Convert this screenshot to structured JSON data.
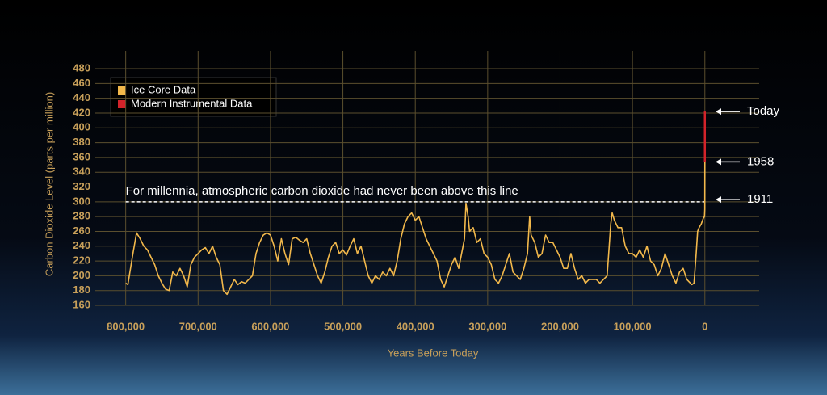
{
  "chart_data": {
    "type": "line",
    "x_label": "Years Before Today",
    "y_label": "Carbon Dioxide Level (parts per million)",
    "xlim": [
      842000,
      -75000
    ],
    "xticks": [
      {
        "value": 800000,
        "label": "800,000"
      },
      {
        "value": 700000,
        "label": "700,000"
      },
      {
        "value": 600000,
        "label": "600,000"
      },
      {
        "value": 500000,
        "label": "500,000"
      },
      {
        "value": 400000,
        "label": "400,000"
      },
      {
        "value": 300000,
        "label": "300,000"
      },
      {
        "value": 200000,
        "label": "200,000"
      },
      {
        "value": 100000,
        "label": "100,000"
      },
      0
    ],
    "ylim": [
      160,
      480
    ],
    "yticks": [
      160,
      180,
      200,
      220,
      240,
      260,
      280,
      300,
      320,
      340,
      360,
      380,
      400,
      420,
      440,
      460,
      480
    ],
    "grid": true,
    "legend": "upper left",
    "threshold": {
      "text": "For millennia, atmospheric carbon dioxide had never been above this line",
      "value": 300
    },
    "annotations": [
      {
        "label": "Today",
        "value": 422
      },
      {
        "label": "1958",
        "value": 354
      },
      {
        "label": "1911",
        "value": 303
      }
    ],
    "series": [
      {
        "name": "Ice Core Data",
        "color": "#f2b84b",
        "x": [
          800000,
          797000,
          795000,
          790000,
          785000,
          780000,
          775000,
          770000,
          765000,
          760000,
          755000,
          750000,
          745000,
          740000,
          735000,
          730000,
          725000,
          720000,
          715000,
          710000,
          705000,
          700000,
          695000,
          690000,
          685000,
          680000,
          675000,
          670000,
          665000,
          660000,
          655000,
          650000,
          645000,
          640000,
          635000,
          630000,
          625000,
          620000,
          615000,
          610000,
          605000,
          600000,
          595000,
          590000,
          585000,
          580000,
          575000,
          570000,
          565000,
          560000,
          555000,
          550000,
          545000,
          540000,
          535000,
          530000,
          525000,
          520000,
          515000,
          510000,
          505000,
          500000,
          495000,
          490000,
          485000,
          480000,
          475000,
          470000,
          465000,
          460000,
          455000,
          450000,
          445000,
          440000,
          435000,
          430000,
          425000,
          420000,
          415000,
          410000,
          405000,
          400000,
          395000,
          390000,
          385000,
          380000,
          375000,
          370000,
          365000,
          360000,
          355000,
          350000,
          345000,
          340000,
          335000,
          332000,
          330000,
          327000,
          325000,
          320000,
          315000,
          310000,
          305000,
          300000,
          295000,
          290000,
          285000,
          280000,
          275000,
          270000,
          265000,
          260000,
          255000,
          250000,
          245000,
          242000,
          240000,
          235000,
          230000,
          225000,
          220000,
          215000,
          210000,
          205000,
          200000,
          195000,
          190000,
          185000,
          180000,
          175000,
          170000,
          165000,
          160000,
          155000,
          150000,
          145000,
          140000,
          135000,
          130000,
          128000,
          125000,
          120000,
          115000,
          110000,
          105000,
          100000,
          95000,
          90000,
          85000,
          80000,
          75000,
          70000,
          65000,
          60000,
          55000,
          50000,
          45000,
          40000,
          35000,
          30000,
          25000,
          20000,
          18000,
          15000,
          12000,
          10000,
          8000,
          5000,
          2000,
          500,
          100,
          0
        ],
        "values": [
          190,
          188,
          200,
          230,
          258,
          250,
          240,
          235,
          225,
          215,
          200,
          190,
          182,
          180,
          205,
          200,
          210,
          200,
          185,
          215,
          225,
          230,
          235,
          238,
          230,
          240,
          225,
          215,
          180,
          175,
          185,
          195,
          188,
          192,
          190,
          195,
          200,
          230,
          245,
          255,
          258,
          255,
          240,
          220,
          250,
          230,
          215,
          250,
          252,
          248,
          245,
          250,
          230,
          215,
          200,
          190,
          205,
          225,
          240,
          245,
          230,
          235,
          228,
          240,
          250,
          230,
          240,
          220,
          200,
          190,
          200,
          195,
          205,
          200,
          210,
          200,
          220,
          250,
          270,
          280,
          285,
          275,
          280,
          265,
          250,
          240,
          230,
          220,
          195,
          185,
          200,
          215,
          225,
          210,
          235,
          250,
          298,
          280,
          260,
          265,
          245,
          250,
          230,
          225,
          215,
          195,
          190,
          200,
          215,
          230,
          205,
          200,
          195,
          210,
          230,
          280,
          255,
          245,
          225,
          230,
          255,
          245,
          245,
          235,
          225,
          210,
          210,
          230,
          210,
          195,
          200,
          190,
          195,
          195,
          195,
          190,
          195,
          200,
          270,
          285,
          275,
          265,
          265,
          240,
          230,
          230,
          225,
          235,
          225,
          240,
          220,
          215,
          200,
          210,
          230,
          215,
          200,
          190,
          205,
          210,
          195,
          190,
          188,
          190,
          230,
          260,
          265,
          270,
          278,
          280,
          290,
          354
        ]
      },
      {
        "name": "Modern Instrumental Data",
        "color": "#d2232a",
        "x": [
          0,
          0
        ],
        "values": [
          354,
          422
        ]
      }
    ]
  }
}
